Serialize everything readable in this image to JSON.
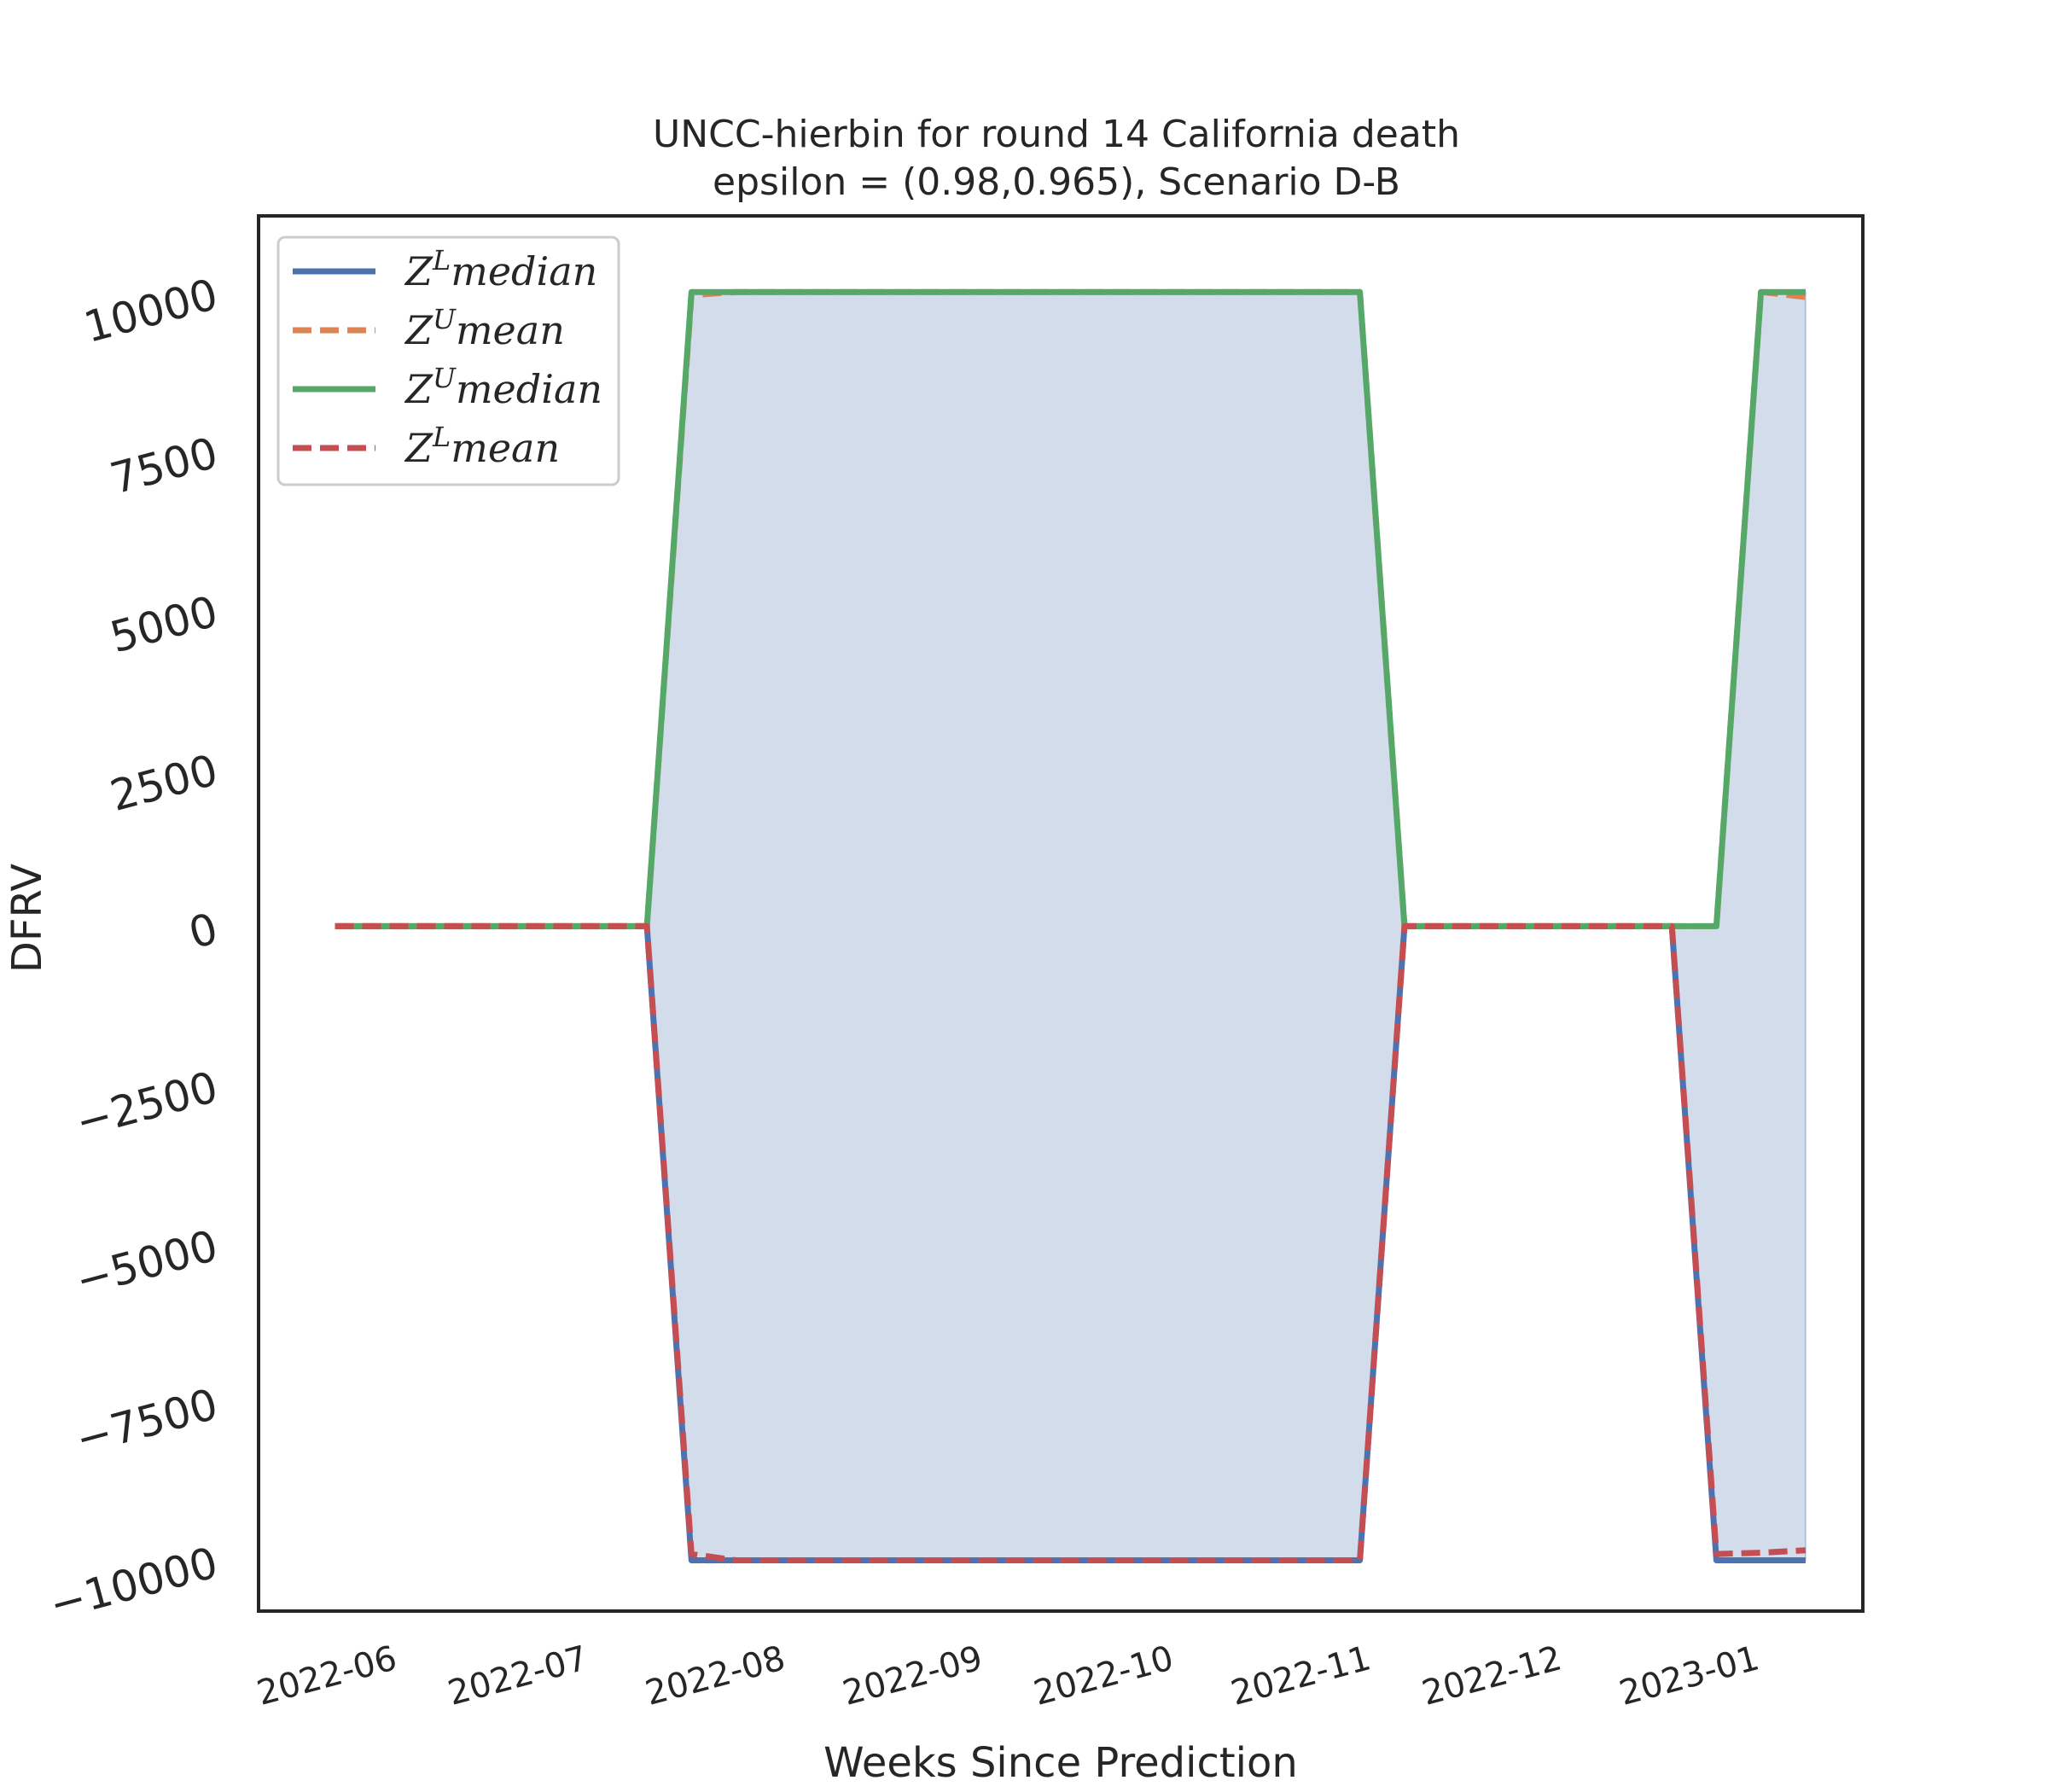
{
  "chart_data": {
    "type": "line",
    "title": "UNCC-hierbin for round 14 California  death",
    "subtitle": "epsilon = (0.98,0.965), Scenario D-B",
    "xlabel": "Weeks Since Prediction",
    "ylabel": "DFRV",
    "ylim": [
      -10800,
      11200
    ],
    "xlim": [
      "2022-05-12",
      "2023-01-19"
    ],
    "grid": false,
    "legend_position": "upper-left",
    "yticks": [
      -10000,
      -7500,
      -5000,
      -2500,
      0,
      2500,
      5000,
      7500,
      10000
    ],
    "ytick_labels": [
      "−10000",
      "−7500",
      "−5000",
      "−2500",
      "0",
      "2500",
      "5000",
      "7500",
      "10000"
    ],
    "xticks": [
      "2022-06-01",
      "2022-07-01",
      "2022-08-01",
      "2022-09-01",
      "2022-10-01",
      "2022-11-01",
      "2022-12-01",
      "2023-01-01"
    ],
    "xtick_labels": [
      "2022-06",
      "2022-07",
      "2022-08",
      "2022-09",
      "2022-10",
      "2022-11",
      "2022-12",
      "2023-01"
    ],
    "x": [
      "2022-05-24",
      "2022-05-31",
      "2022-06-07",
      "2022-06-14",
      "2022-06-21",
      "2022-06-28",
      "2022-07-05",
      "2022-07-12",
      "2022-07-19",
      "2022-07-26",
      "2022-08-02",
      "2022-08-09",
      "2022-08-16",
      "2022-08-23",
      "2022-08-30",
      "2022-09-06",
      "2022-09-13",
      "2022-09-20",
      "2022-09-27",
      "2022-10-04",
      "2022-10-11",
      "2022-10-18",
      "2022-10-25",
      "2022-11-01",
      "2022-11-08",
      "2022-11-15",
      "2022-11-22",
      "2022-11-29",
      "2022-12-06",
      "2022-12-13",
      "2022-12-20",
      "2022-12-27",
      "2023-01-03",
      "2023-01-10"
    ],
    "series": [
      {
        "name": "Z^L median",
        "legend_base": "Z",
        "legend_sup": "L",
        "legend_suffix": "median",
        "color": "#4c72b0",
        "dash": "solid",
        "values": [
          0,
          0,
          0,
          0,
          0,
          0,
          0,
          0,
          -10000,
          -10000,
          -10000,
          -10000,
          -10000,
          -10000,
          -10000,
          -10000,
          -10000,
          -10000,
          -10000,
          -10000,
          -10000,
          -10000,
          -10000,
          -10000,
          0,
          0,
          0,
          0,
          0,
          0,
          0,
          -10000,
          -10000,
          -10000
        ]
      },
      {
        "name": "Z^U mean",
        "legend_base": "Z",
        "legend_sup": "U",
        "legend_suffix": "mean",
        "color": "#dd8452",
        "dash": "dashed",
        "values": [
          0,
          0,
          0,
          0,
          0,
          0,
          0,
          0,
          9950,
          10000,
          10000,
          10000,
          10000,
          10000,
          10000,
          10000,
          10000,
          10000,
          10000,
          10000,
          10000,
          10000,
          10000,
          10000,
          0,
          0,
          0,
          0,
          0,
          0,
          0,
          0,
          10000,
          9920
        ]
      },
      {
        "name": "Z^U median",
        "legend_base": "Z",
        "legend_sup": "U",
        "legend_suffix": "median",
        "color": "#55a868",
        "dash": "solid",
        "values": [
          0,
          0,
          0,
          0,
          0,
          0,
          0,
          0,
          10000,
          10000,
          10000,
          10000,
          10000,
          10000,
          10000,
          10000,
          10000,
          10000,
          10000,
          10000,
          10000,
          10000,
          10000,
          10000,
          0,
          0,
          0,
          0,
          0,
          0,
          0,
          0,
          10000,
          10000
        ]
      },
      {
        "name": "Z^L mean",
        "legend_base": "Z",
        "legend_sup": "L",
        "legend_suffix": "mean",
        "color": "#c44e52",
        "dash": "dashed",
        "values": [
          0,
          0,
          0,
          0,
          0,
          0,
          0,
          0,
          -9900,
          -10000,
          -10000,
          -10000,
          -10000,
          -10000,
          -10000,
          -10000,
          -10000,
          -10000,
          -10000,
          -10000,
          -10000,
          -10000,
          -10000,
          -10000,
          0,
          0,
          0,
          0,
          0,
          0,
          0,
          -9900,
          -9880,
          -9840
        ]
      }
    ],
    "fill_between": {
      "lower": "Z^L median",
      "upper": "Z^U median",
      "color": "#4c72b0",
      "opacity": 0.25
    }
  }
}
